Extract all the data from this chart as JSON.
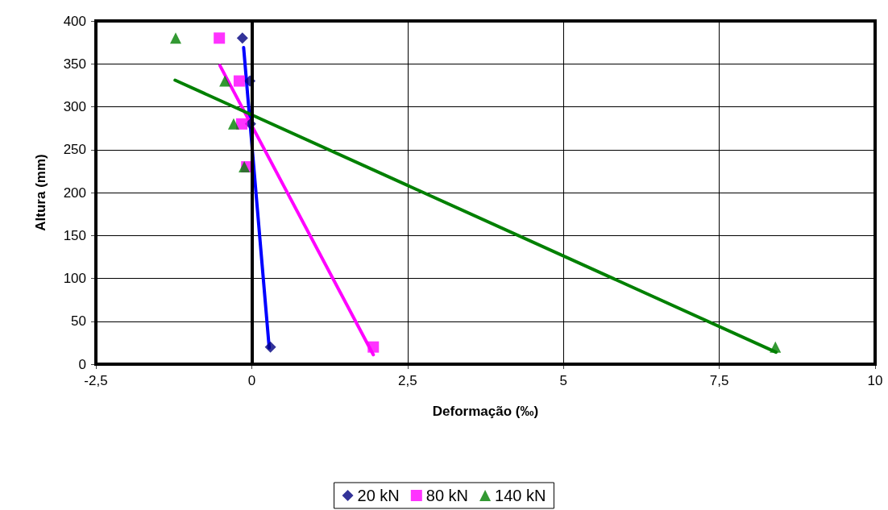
{
  "chart_data": {
    "type": "scatter",
    "xlabel": "Deformação (‰)",
    "ylabel": "Altura (mm)",
    "xlim": [
      -2.5,
      10
    ],
    "xticks": [
      {
        "value": -2.5,
        "label": "-2,5"
      },
      0,
      {
        "value": 2.5,
        "label": "2,5"
      },
      5,
      {
        "value": 7.5,
        "label": "7,5"
      },
      10
    ],
    "ylim": [
      0,
      400
    ],
    "yticks": [
      0,
      50,
      100,
      150,
      200,
      250,
      300,
      350,
      400
    ],
    "grid": true,
    "legend": "bottom",
    "ref_lines": [
      {
        "axis": "x",
        "value": 0,
        "color": "#000000"
      }
    ],
    "series": [
      {
        "name": "20 kN",
        "color": "#000080",
        "marker": "diamond",
        "x": [
          -0.15,
          -0.03,
          -0.02,
          0,
          0.3
        ],
        "values": [
          380,
          330,
          280,
          null,
          20
        ]
      },
      {
        "name": "80 kN",
        "color": "#ff00ff",
        "marker": "square",
        "x": [
          -0.52,
          -0.2,
          -0.16,
          -0.08,
          1.95
        ],
        "values": [
          380,
          330,
          280,
          230,
          20
        ]
      },
      {
        "name": "140 kN",
        "color": "#008000",
        "marker": "triangle",
        "x": [
          -1.22,
          -0.43,
          -0.29,
          -0.12,
          8.4
        ],
        "values": [
          380,
          330,
          280,
          230,
          20
        ]
      },
      {
        "type": "line",
        "color": "#0000ff",
        "marker": "none",
        "x": [
          -0.13,
          0.28
        ],
        "values": [
          369,
          19
        ]
      },
      {
        "type": "line",
        "color": "#ff00ff",
        "marker": "none",
        "x": [
          -0.51,
          1.95
        ],
        "values": [
          348,
          11
        ]
      },
      {
        "type": "line",
        "color": "#008000",
        "marker": "none",
        "x": [
          -1.23,
          8.41
        ],
        "values": [
          331,
          14
        ]
      }
    ]
  }
}
